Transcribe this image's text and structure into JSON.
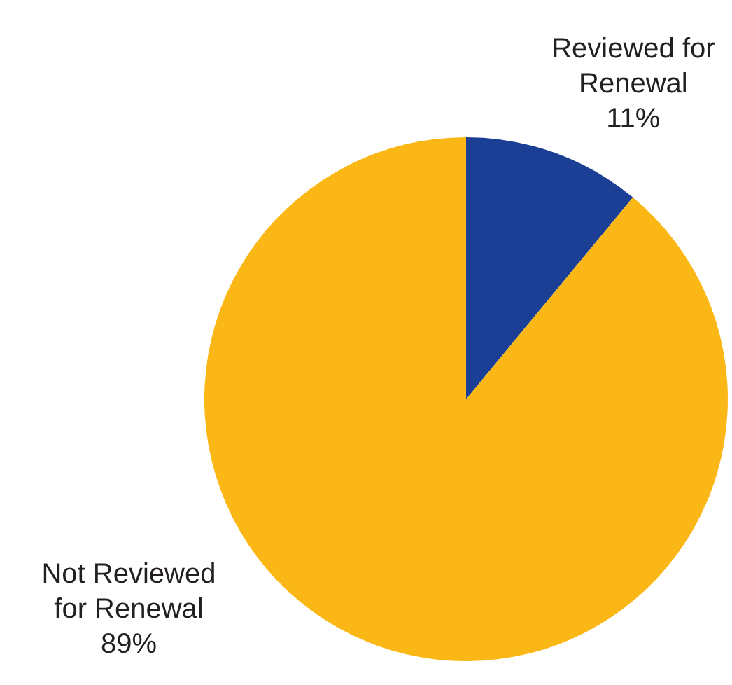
{
  "chart_data": {
    "type": "pie",
    "categories": [
      "Reviewed for Renewal",
      "Not Reviewed for Renewal"
    ],
    "values": [
      11,
      89
    ],
    "colors": [
      "#1b3f94",
      "#fbb715"
    ],
    "value_labels": [
      "11%",
      "89%"
    ]
  }
}
